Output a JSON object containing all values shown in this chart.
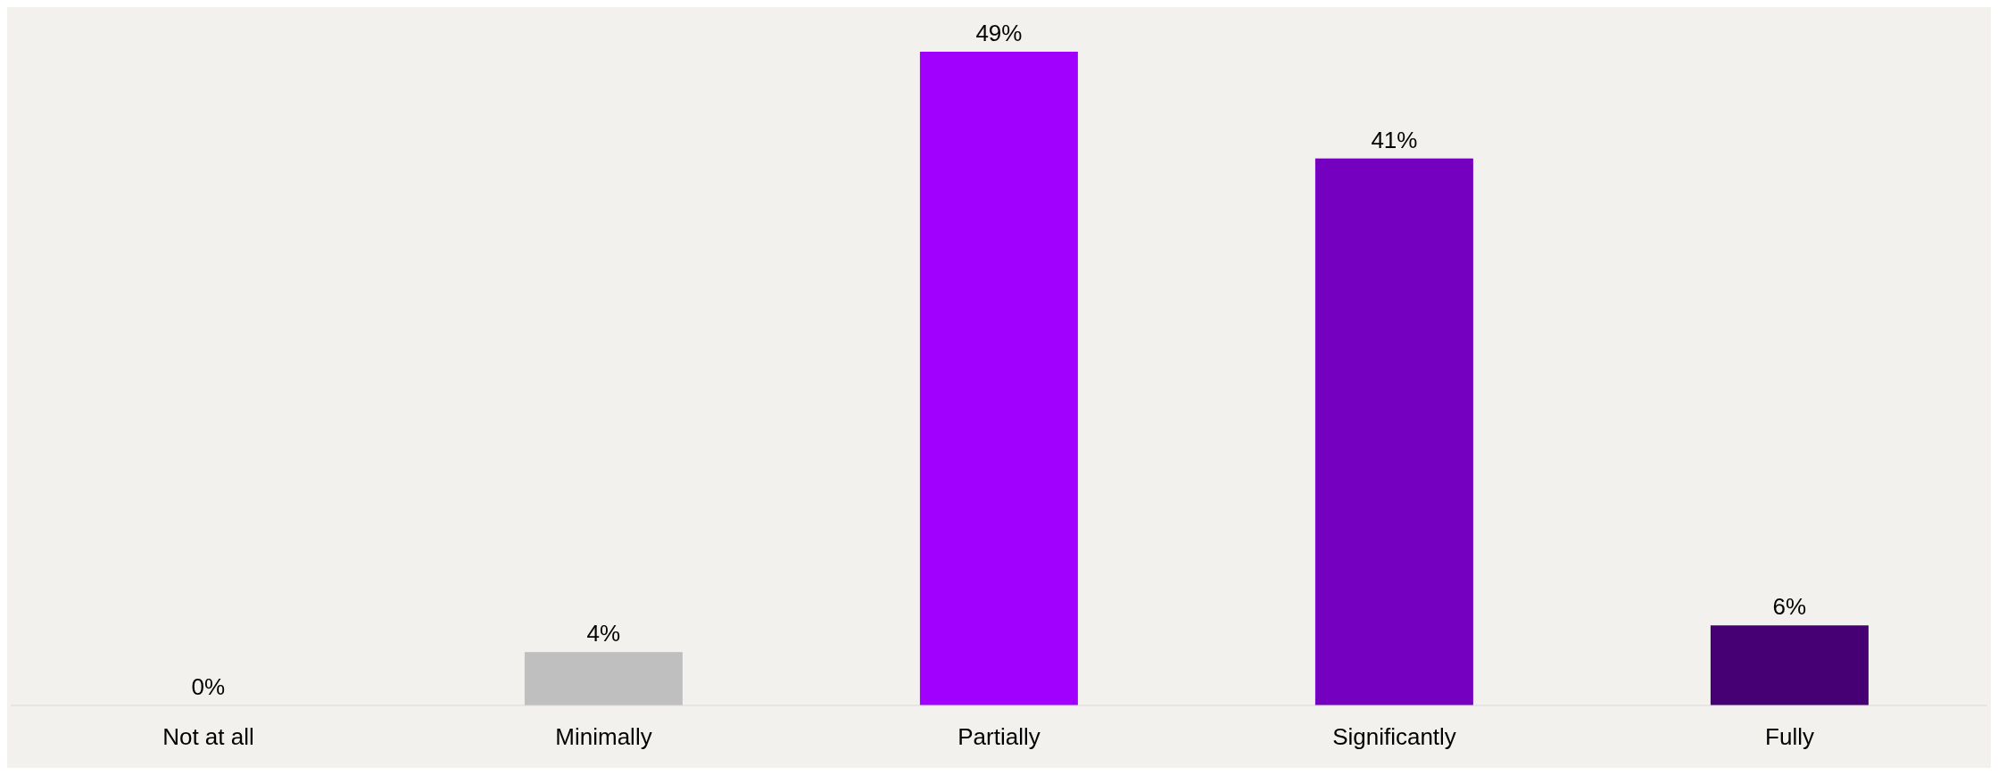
{
  "chart_data": {
    "type": "bar",
    "categories": [
      "Not at all",
      "Minimally",
      "Partially",
      "Significantly",
      "Fully"
    ],
    "values": [
      0,
      4,
      49,
      41,
      6
    ],
    "colors": [
      "#bfbfbf",
      "#bfbfbf",
      "#a100ff",
      "#7500c0",
      "#460073"
    ],
    "value_labels": [
      "0%",
      "4%",
      "49%",
      "41%",
      "6%"
    ],
    "grid": false,
    "legend": false
  }
}
